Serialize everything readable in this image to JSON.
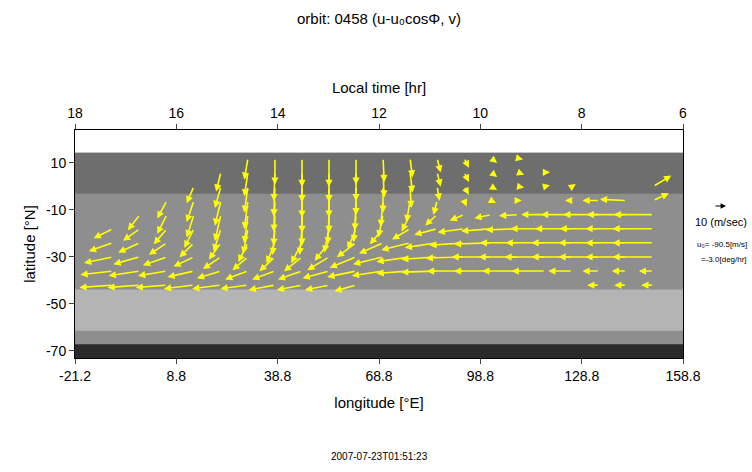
{
  "chart_data": {
    "type": "vector_field",
    "title": "orbit: 0458 (u-u₀cosΦ, v)",
    "x_label": "longitude [°E]",
    "x2_label": "Local time [hr]",
    "y_label": "latitude [°N]",
    "xlim": [
      -21.2,
      158.8
    ],
    "xticks": [
      -21.2,
      8.8,
      38.8,
      68.8,
      98.8,
      128.8,
      158.8
    ],
    "x2lim": [
      18,
      6
    ],
    "x2ticks": [
      18,
      16,
      14,
      12,
      10,
      8,
      6
    ],
    "ylim": [
      -73,
      24
    ],
    "yticks": [
      10,
      -10,
      -30,
      -50,
      -70
    ],
    "color": "#ffff00",
    "lon": [
      -10,
      -2,
      6,
      14,
      22,
      30,
      38,
      46,
      54,
      62,
      70,
      78,
      86,
      94,
      102,
      110,
      118,
      126,
      134,
      142,
      150
    ],
    "lat": [
      12,
      6,
      0,
      -6,
      -12,
      -18,
      -24,
      -30,
      -36,
      -42
    ],
    "u": [
      [
        null,
        null,
        null,
        null,
        null,
        -3,
        0,
        0,
        0,
        0,
        1,
        2,
        3,
        4,
        5,
        4,
        null,
        null,
        null,
        null,
        null
      ],
      [
        null,
        null,
        null,
        null,
        -4,
        -3,
        -1,
        0,
        0,
        0,
        1,
        2,
        3,
        4,
        5,
        5,
        4,
        null,
        null,
        null,
        null
      ],
      [
        null,
        null,
        null,
        -6,
        -5,
        -3,
        -1,
        0,
        0,
        0,
        0,
        1,
        2,
        4,
        5,
        5,
        4,
        3,
        null,
        null,
        15
      ],
      [
        null,
        null,
        -8,
        -6,
        -5,
        -3,
        -1,
        0,
        0,
        -1,
        -2,
        -3,
        -3,
        2,
        4,
        3,
        1,
        -6,
        -14,
        -22,
        13
      ],
      [
        null,
        -10,
        -8,
        -6,
        -5,
        -3,
        -1,
        0,
        -1,
        -2,
        -4,
        -7,
        -10,
        -12,
        -14,
        -16,
        -20,
        -26,
        -30,
        -33,
        -33
      ],
      [
        -16,
        -14,
        -11,
        -8,
        -6,
        -4,
        -2,
        -2,
        -4,
        -7,
        -11,
        -15,
        -19,
        -22,
        -25,
        -27,
        -29,
        -31,
        -33,
        -34,
        -34
      ],
      [
        -20,
        -18,
        -15,
        -12,
        -10,
        -8,
        -7,
        -9,
        -12,
        -16,
        -20,
        -24,
        -27,
        -29,
        -31,
        -32,
        -33,
        -34,
        -34,
        -34,
        -34
      ],
      [
        -24,
        -22,
        -20,
        -17,
        -15,
        -13,
        -13,
        -15,
        -18,
        -22,
        -25,
        -28,
        -30,
        -32,
        -33,
        -33,
        -34,
        -34,
        -34,
        -34,
        -34
      ],
      [
        -27,
        -26,
        -24,
        -22,
        -20,
        -19,
        -19,
        -20,
        -22,
        -24,
        -26,
        -28,
        -30,
        -31,
        -31,
        -30,
        -28,
        -20,
        -14,
        -12,
        -12
      ],
      [
        -28,
        -27,
        -26,
        -25,
        -24,
        -23,
        -22,
        -21,
        -20,
        -18,
        null,
        null,
        null,
        null,
        null,
        null,
        null,
        null,
        -10,
        -10,
        -10
      ]
    ],
    "v": [
      [
        null,
        null,
        null,
        null,
        null,
        -18,
        -22,
        -24,
        -24,
        -22,
        -20,
        -16,
        -12,
        -8,
        -4,
        -1,
        null,
        null,
        null,
        null,
        null
      ],
      [
        null,
        null,
        null,
        null,
        -16,
        -20,
        -24,
        -25,
        -25,
        -24,
        -21,
        -17,
        -12,
        -8,
        -4,
        -2,
        0,
        null,
        null,
        null,
        null
      ],
      [
        null,
        null,
        null,
        -14,
        -18,
        -22,
        -25,
        -26,
        -26,
        -24,
        -22,
        -18,
        -12,
        -7,
        -3,
        -1,
        1,
        2,
        null,
        null,
        9
      ],
      [
        null,
        null,
        -15,
        -18,
        -21,
        -24,
        -26,
        -27,
        -27,
        -25,
        -22,
        -18,
        -12,
        -5,
        -2,
        0,
        0,
        0,
        0,
        1,
        6
      ],
      [
        null,
        -13,
        -16,
        -19,
        -22,
        -24,
        -26,
        -26,
        -25,
        -23,
        -19,
        -14,
        -9,
        -5,
        -3,
        -1,
        0,
        0,
        0,
        0,
        0
      ],
      [
        -8,
        -10,
        -13,
        -16,
        -19,
        -21,
        -22,
        -22,
        -20,
        -17,
        -13,
        -9,
        -5,
        -3,
        -2,
        -1,
        0,
        0,
        0,
        0,
        0
      ],
      [
        -7,
        -8,
        -10,
        -12,
        -14,
        -16,
        -17,
        -17,
        -15,
        -12,
        -9,
        -6,
        -4,
        -2,
        -1,
        0,
        0,
        0,
        0,
        0,
        0
      ],
      [
        -5,
        -6,
        -7,
        -8,
        -10,
        -11,
        -12,
        -12,
        -11,
        -9,
        -6,
        -4,
        -2,
        -1,
        0,
        0,
        0,
        0,
        0,
        0,
        0
      ],
      [
        -3,
        -4,
        -4,
        -5,
        -6,
        -7,
        -7,
        -7,
        -6,
        -5,
        -4,
        -2,
        -1,
        0,
        0,
        0,
        0,
        0,
        0,
        0,
        0
      ],
      [
        -2,
        -2,
        -2,
        -3,
        -3,
        -3,
        -4,
        -4,
        -4,
        -5,
        null,
        null,
        null,
        null,
        null,
        null,
        null,
        null,
        0,
        0,
        0
      ]
    ],
    "reference": {
      "value": 10,
      "label": "10 (m/sec)"
    },
    "annotations": [
      "u₀= -90.5[m/s]",
      "=-3.0[deg/hr]",
      "2007-07-23T01:51:23"
    ]
  }
}
